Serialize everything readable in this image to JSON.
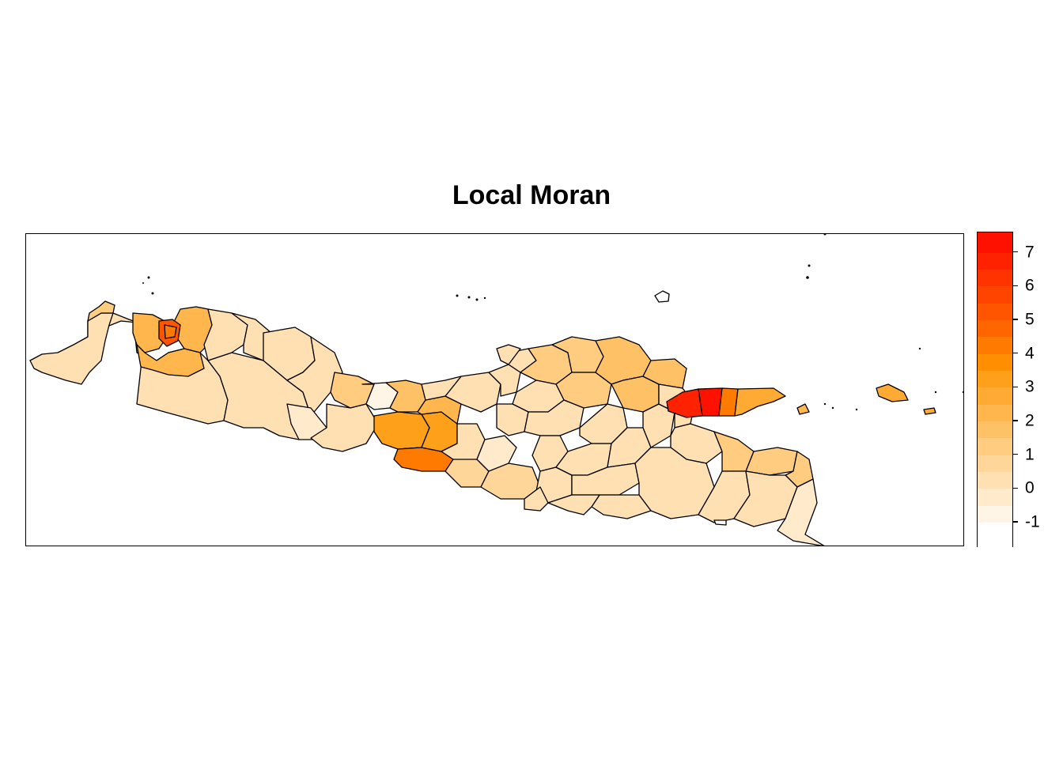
{
  "title": "Local Moran",
  "legend": {
    "ticks": [
      "-1",
      "0",
      "1",
      "2",
      "3",
      "4",
      "5",
      "6",
      "7"
    ],
    "tick_values": [
      -1,
      0,
      1,
      2,
      3,
      4,
      5,
      6,
      7
    ],
    "range": [
      -1.75,
      7.6
    ],
    "bins": [
      {
        "from": -1.75,
        "to": -1.0,
        "color": "#ffffff"
      },
      {
        "from": -1.0,
        "to": -0.5,
        "color": "#fff5e6"
      },
      {
        "from": -0.5,
        "to": 0.0,
        "color": "#ffebcc"
      },
      {
        "from": 0.0,
        "to": 0.5,
        "color": "#ffe0b2"
      },
      {
        "from": 0.5,
        "to": 1.0,
        "color": "#ffd699"
      },
      {
        "from": 1.0,
        "to": 1.5,
        "color": "#ffcc80"
      },
      {
        "from": 1.5,
        "to": 2.0,
        "color": "#ffc166"
      },
      {
        "from": 2.0,
        "to": 2.5,
        "color": "#ffb64d"
      },
      {
        "from": 2.5,
        "to": 3.0,
        "color": "#ffab33"
      },
      {
        "from": 3.0,
        "to": 3.5,
        "color": "#ffa01a"
      },
      {
        "from": 3.5,
        "to": 4.0,
        "color": "#ff8f00"
      },
      {
        "from": 4.0,
        "to": 4.5,
        "color": "#ff7a00"
      },
      {
        "from": 4.5,
        "to": 5.0,
        "color": "#ff6600"
      },
      {
        "from": 5.0,
        "to": 5.5,
        "color": "#ff5500"
      },
      {
        "from": 5.5,
        "to": 6.0,
        "color": "#ff4400"
      },
      {
        "from": 6.0,
        "to": 6.5,
        "color": "#ff3300"
      },
      {
        "from": 6.5,
        "to": 7.0,
        "color": "#ff2200"
      },
      {
        "from": 7.0,
        "to": 7.6,
        "color": "#ff1100"
      }
    ]
  }
}
